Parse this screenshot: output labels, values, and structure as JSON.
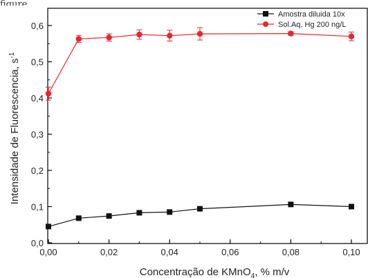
{
  "caption": "figure",
  "chart_data": {
    "type": "line",
    "title": "",
    "xlabel": "Concentração de KMnO",
    "xlabel_sub": "4",
    "xlabel_suffix": ", % m/v",
    "ylabel": "Intensidade de Fluorescencia, s",
    "ylabel_sup": "-1",
    "xlim": [
      -0.007,
      0.105
    ],
    "ylim": [
      0.0,
      0.645
    ],
    "xticks": [
      0.0,
      0.02,
      0.04,
      0.06,
      0.08,
      0.1
    ],
    "xtick_labels": [
      "0,00",
      "0,02",
      "0,04",
      "0,06",
      "0,08",
      "0,10"
    ],
    "yticks": [
      0.0,
      0.1,
      0.2,
      0.3,
      0.4,
      0.5,
      0.6
    ],
    "ytick_labels": [
      "0,0",
      "0,1",
      "0,2",
      "0,3",
      "0,4",
      "0,5",
      "0,6"
    ],
    "grid": false,
    "legend_position": "top-right",
    "series": [
      {
        "name": "Amostra diluida 10x",
        "color": "#111111",
        "marker": "square",
        "points": [
          {
            "x": 0.0,
            "y": 0.045
          },
          {
            "x": 0.01,
            "y": 0.068
          },
          {
            "x": 0.02,
            "y": 0.074
          },
          {
            "x": 0.03,
            "y": 0.083
          },
          {
            "x": 0.04,
            "y": 0.085
          },
          {
            "x": 0.05,
            "y": 0.094
          },
          {
            "x": 0.08,
            "y": 0.106
          },
          {
            "x": 0.1,
            "y": 0.1
          }
        ]
      },
      {
        "name": "Sol.Aq. Hg 200 ng/L",
        "color": "#e8262b",
        "marker": "circle",
        "points": [
          {
            "x": 0.0,
            "y": 0.412,
            "err": 0.018
          },
          {
            "x": 0.01,
            "y": 0.563,
            "err": 0.01
          },
          {
            "x": 0.02,
            "y": 0.567,
            "err": 0.01
          },
          {
            "x": 0.03,
            "y": 0.575,
            "err": 0.013
          },
          {
            "x": 0.04,
            "y": 0.572,
            "err": 0.015
          },
          {
            "x": 0.05,
            "y": 0.577,
            "err": 0.017
          },
          {
            "x": 0.08,
            "y": 0.578,
            "err": 0.005
          },
          {
            "x": 0.1,
            "y": 0.57,
            "err": 0.012
          }
        ]
      }
    ]
  }
}
